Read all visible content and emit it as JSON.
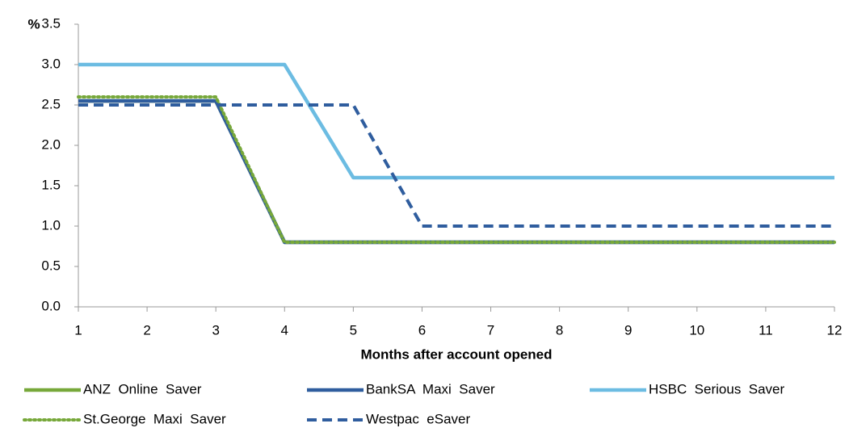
{
  "chart_data": {
    "type": "line",
    "y_label": "%",
    "x_label": "Months after account opened",
    "x": [
      1,
      2,
      3,
      4,
      5,
      6,
      7,
      8,
      9,
      10,
      11,
      12
    ],
    "xlim": [
      1,
      12
    ],
    "xticks": [
      1,
      2,
      3,
      4,
      5,
      6,
      7,
      8,
      9,
      10,
      11,
      12
    ],
    "ylim": [
      0,
      3.5
    ],
    "yticks": [
      {
        "value": 0,
        "label": "0.0"
      },
      {
        "value": 0.5,
        "label": "0.5"
      },
      {
        "value": 1,
        "label": "1.0"
      },
      {
        "value": 1.5,
        "label": "1.5"
      },
      {
        "value": 2,
        "label": "2.0"
      },
      {
        "value": 2.5,
        "label": "2.5"
      },
      {
        "value": 3,
        "label": "3.0"
      },
      {
        "value": 3.5,
        "label": "3.5"
      }
    ],
    "grid": false,
    "legend": "bottom",
    "series": [
      {
        "name": "ANZ  Online  Saver",
        "color": "#77a83a",
        "style": "solid",
        "values": [
          2.55,
          2.55,
          2.55,
          0.8,
          0.8,
          0.8,
          0.8,
          0.8,
          0.8,
          0.8,
          0.8,
          0.8
        ]
      },
      {
        "name": "BankSA  Maxi  Saver",
        "color": "#2f5d9e",
        "style": "solid",
        "values": [
          2.55,
          2.55,
          2.55,
          0.8,
          0.8,
          0.8,
          0.8,
          0.8,
          0.8,
          0.8,
          0.8,
          0.8
        ]
      },
      {
        "name": "HSBC  Serious  Saver",
        "color": "#6cbce2",
        "style": "solid",
        "values": [
          3.0,
          3.0,
          3.0,
          3.0,
          1.6,
          1.6,
          1.6,
          1.6,
          1.6,
          1.6,
          1.6,
          1.6
        ]
      },
      {
        "name": "St.George  Maxi  Saver",
        "color": "#77a83a",
        "style": "dotted",
        "values": [
          2.6,
          2.6,
          2.6,
          0.8,
          0.8,
          0.8,
          0.8,
          0.8,
          0.8,
          0.8,
          0.8,
          0.8
        ]
      },
      {
        "name": "Westpac  eSaver",
        "color": "#2f5d9e",
        "style": "dashed",
        "values": [
          2.5,
          2.5,
          2.5,
          2.5,
          2.5,
          1.0,
          1.0,
          1.0,
          1.0,
          1.0,
          1.0,
          1.0
        ]
      }
    ]
  }
}
